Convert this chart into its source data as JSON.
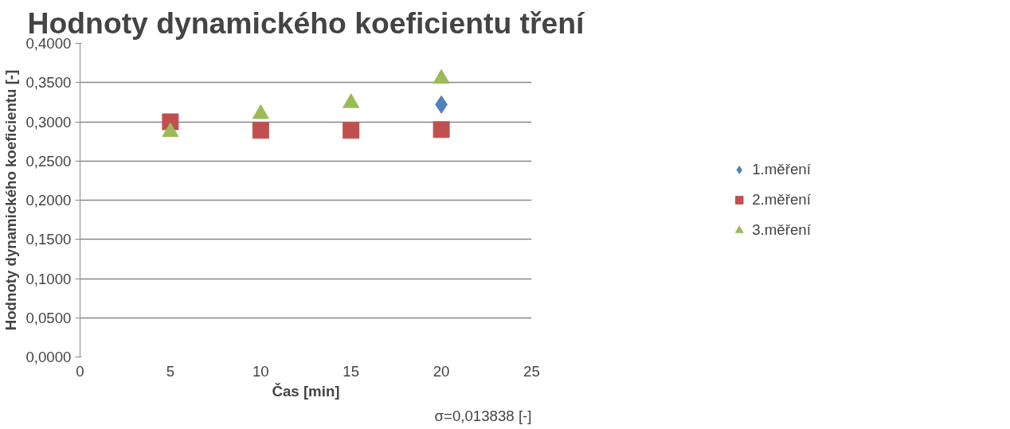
{
  "chart_data": {
    "type": "scatter",
    "title": "Hodnoty dynamického koeficientu tření",
    "xlabel": "Čas [min]",
    "ylabel": "Hodnoty dynamického koeficientu [-]",
    "x": [
      5,
      10,
      15,
      20
    ],
    "series": [
      {
        "name": "1.měření",
        "color": "#4f81bd",
        "marker": "diamond",
        "values": [
          null,
          null,
          null,
          0.322
        ]
      },
      {
        "name": "2.měření",
        "color": "#c0504d",
        "marker": "square",
        "values": [
          0.3,
          0.289,
          0.289,
          0.29
        ]
      },
      {
        "name": "3.měření",
        "color": "#9bbb59",
        "marker": "triangle",
        "values": [
          0.287,
          0.31,
          0.324,
          0.355
        ]
      }
    ],
    "xlim": [
      0,
      25
    ],
    "xticks": [
      0,
      5,
      10,
      15,
      20,
      25
    ],
    "ylim": [
      0,
      0.4
    ],
    "yticks": [
      {
        "value": 0,
        "label": "0,0000"
      },
      {
        "value": 0.05,
        "label": "0,0500"
      },
      {
        "value": 0.1,
        "label": "0,1000"
      },
      {
        "value": 0.15,
        "label": "0,1500"
      },
      {
        "value": 0.2,
        "label": "0,2000"
      },
      {
        "value": 0.25,
        "label": "0,2500"
      },
      {
        "value": 0.3,
        "label": "0,3000"
      },
      {
        "value": 0.35,
        "label": "0,3500"
      },
      {
        "value": 0.4,
        "label": "0,4000"
      }
    ],
    "grid": "y",
    "legend": "right",
    "annotations": [
      "σ=0,013838 [-]"
    ]
  }
}
